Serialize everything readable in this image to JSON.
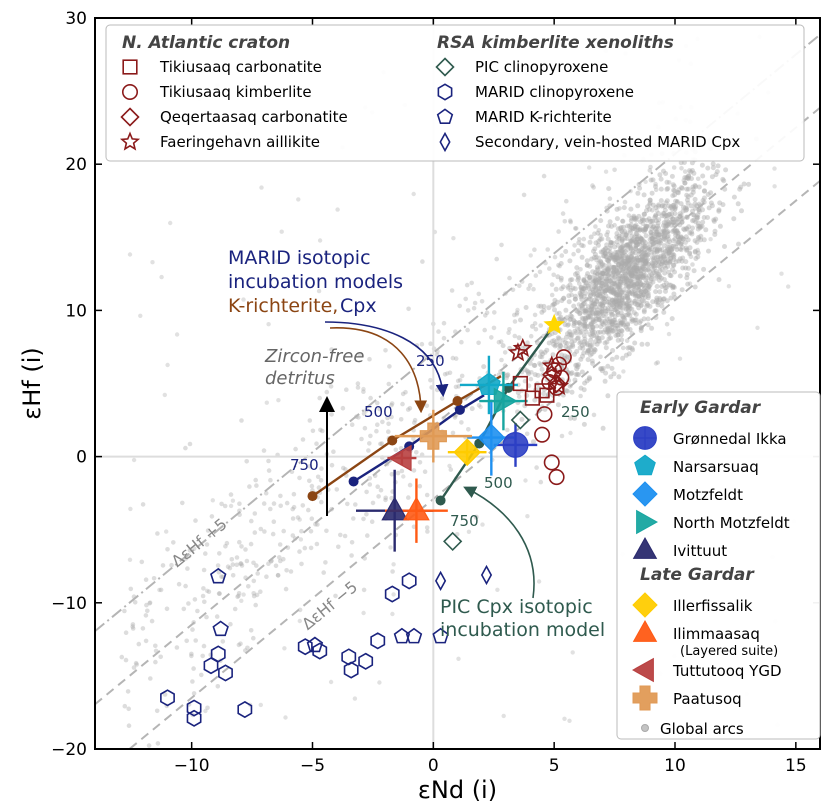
{
  "chart_data": {
    "type": "scatter",
    "xlabel": "εNd (i)",
    "ylabel": "εHf (i)",
    "xlim": [
      -14,
      16
    ],
    "ylim": [
      -20,
      30
    ],
    "x_ticks": [
      -10,
      -5,
      0,
      5,
      10,
      15
    ],
    "y_ticks": [
      -20,
      -10,
      0,
      10,
      20,
      30
    ],
    "x_tick_labels": [
      "−10",
      "−5",
      "0",
      "5",
      "10",
      "15"
    ],
    "y_tick_labels": [
      "−20",
      "−10",
      "0",
      "10",
      "20",
      "30"
    ],
    "grid": false,
    "reference_lines": [
      {
        "label": "ΔεHf +5",
        "slope": 1.36,
        "intercept": 7.1,
        "style": "dash-dot"
      },
      {
        "label": "",
        "slope": 1.36,
        "intercept": 2.1,
        "style": "dashed"
      },
      {
        "label": "ΔεHf −5",
        "slope": 1.36,
        "intercept": -2.9,
        "style": "dashed"
      }
    ],
    "upper_legend": {
      "placement": "top",
      "columns": [
        {
          "heading": "N. Atlantic craton",
          "entries": [
            {
              "label": "Tikiusaaq carbonatite",
              "marker": "square",
              "color": "#8b1a1a"
            },
            {
              "label": "Tikiusaaq kimberlite",
              "marker": "circle",
              "color": "#8b1a1a"
            },
            {
              "label": "Qeqertaasaq carbonatite",
              "marker": "diamond",
              "color": "#8b1a1a"
            },
            {
              "label": "Faeringehavn aillikite",
              "marker": "star",
              "color": "#8b1a1a"
            }
          ]
        },
        {
          "heading": "RSA kimberlite xenoliths",
          "entries": [
            {
              "label": "PIC clinopyroxene",
              "marker": "diamond",
              "color": "#2f5a4e"
            },
            {
              "label": "MARID clinopyroxene",
              "marker": "hexagon",
              "color": "#1a237e"
            },
            {
              "label": "MARID K-richterite",
              "marker": "pentagon",
              "color": "#1a237e"
            },
            {
              "label": "Secondary, vein-hosted MARID Cpx",
              "marker": "thin-diamond",
              "color": "#1a237e"
            }
          ]
        }
      ]
    },
    "side_legend": {
      "placement": "right",
      "groups": [
        {
          "heading": "Early Gardar",
          "entries": [
            {
              "label": "Grønnedal Ikka",
              "marker": "circle-plus",
              "color": "#2c3fc4"
            },
            {
              "label": "Narsarsuaq",
              "marker": "pentagon",
              "color": "#12a8c8"
            },
            {
              "label": "Motzfeldt",
              "marker": "diamond",
              "color": "#1e90f0"
            },
            {
              "label": "North Motzfeldt",
              "marker": "triangle-right",
              "color": "#17a5a0"
            },
            {
              "label": "Ivittuut",
              "marker": "triangle-up",
              "color": "#2a2a6e"
            }
          ]
        },
        {
          "heading": "Late Gardar",
          "entries": [
            {
              "label": "Illerfissalik",
              "marker": "diamond",
              "color": "#ffcc00"
            },
            {
              "label": "Ilimmaasaq",
              "sublabel": "(Layered suite)",
              "marker": "triangle-up",
              "color": "#ff5a14"
            },
            {
              "label": "Tuttutooq YGD",
              "marker": "triangle-left",
              "color": "#b84040"
            },
            {
              "label": "Paatusoq",
              "marker": "plus",
              "color": "#e09a55"
            }
          ]
        },
        {
          "heading": "",
          "entries": [
            {
              "label": "Global arcs",
              "marker": "dot",
              "color": "#aaaaaa"
            }
          ]
        }
      ]
    },
    "series": [
      {
        "name": "Tikiusaaq carbonatite",
        "marker": "square",
        "color": "#8b1a1a",
        "points": [
          [
            3.6,
            5.0
          ],
          [
            4.1,
            4.0
          ],
          [
            4.5,
            4.5
          ],
          [
            4.7,
            4.2
          ]
        ]
      },
      {
        "name": "Tikiusaaq kimberlite",
        "marker": "circle",
        "color": "#8b1a1a",
        "points": [
          [
            5.4,
            6.8
          ],
          [
            5.2,
            6.3
          ],
          [
            5.0,
            5.9
          ],
          [
            5.3,
            5.4
          ],
          [
            4.8,
            5.1
          ],
          [
            5.1,
            4.7
          ],
          [
            4.6,
            2.9
          ],
          [
            4.5,
            1.5
          ],
          [
            4.9,
            -0.4
          ],
          [
            5.1,
            -1.4
          ]
        ]
      },
      {
        "name": "Qeqertaasaq carbonatite",
        "marker": "diamond",
        "color": "#8b1a1a",
        "points": [
          [
            4.9,
            5.6
          ],
          [
            5.1,
            5.0
          ]
        ]
      },
      {
        "name": "Faeringehavn aillikite",
        "marker": "star",
        "color": "#8b1a1a",
        "points": [
          [
            3.7,
            7.4
          ],
          [
            3.5,
            7.1
          ],
          [
            4.9,
            6.2
          ],
          [
            5.2,
            4.8
          ]
        ]
      },
      {
        "name": "PIC clinopyroxene",
        "marker": "diamond",
        "color": "#2f5a4e",
        "points": [
          [
            3.6,
            2.5
          ],
          [
            0.8,
            -5.8
          ]
        ]
      },
      {
        "name": "MARID clinopyroxene",
        "marker": "hexagon",
        "color": "#1a237e",
        "points": [
          [
            -11.0,
            -16.5
          ],
          [
            -9.9,
            -17.2
          ],
          [
            -9.9,
            -17.9
          ],
          [
            -9.2,
            -14.3
          ],
          [
            -8.9,
            -13.5
          ],
          [
            -8.6,
            -14.8
          ],
          [
            -7.8,
            -17.3
          ],
          [
            -5.3,
            -13.0
          ],
          [
            -4.7,
            -13.3
          ],
          [
            -3.5,
            -13.7
          ],
          [
            -3.4,
            -14.6
          ],
          [
            -2.8,
            -14.0
          ],
          [
            -2.3,
            -12.6
          ],
          [
            -1.7,
            -9.4
          ],
          [
            -1.0,
            -8.5
          ]
        ]
      },
      {
        "name": "MARID K-richterite",
        "marker": "pentagon",
        "color": "#1a237e",
        "points": [
          [
            -8.9,
            -8.2
          ],
          [
            -8.8,
            -11.8
          ],
          [
            -4.9,
            -12.9
          ],
          [
            -1.3,
            -12.3
          ],
          [
            0.3,
            -12.3
          ],
          [
            -0.8,
            -12.3
          ]
        ]
      },
      {
        "name": "Secondary, vein-hosted MARID Cpx",
        "marker": "thin-diamond",
        "color": "#1a237e",
        "points": [
          [
            0.3,
            -8.5
          ],
          [
            2.2,
            -8.1
          ]
        ]
      },
      {
        "name": "Grønnedal Ikka",
        "marker": "circle-plus",
        "color": "#2c3fc4",
        "points": [
          [
            3.4,
            0.8
          ]
        ],
        "xerr": 0.9,
        "yerr": 1.5
      },
      {
        "name": "Narsarsuaq",
        "marker": "pentagon",
        "color": "#12a8c8",
        "points": [
          [
            2.3,
            4.9
          ]
        ],
        "xerr": 1.2,
        "yerr": 2.0
      },
      {
        "name": "Motzfeldt",
        "marker": "diamond",
        "color": "#1e90f0",
        "points": [
          [
            2.4,
            1.3
          ]
        ],
        "xerr": 1.0,
        "yerr": 2.6
      },
      {
        "name": "North Motzfeldt",
        "marker": "triangle-right",
        "color": "#17a5a0",
        "points": [
          [
            2.9,
            3.8
          ]
        ],
        "xerr": 1.0,
        "yerr": 2.0
      },
      {
        "name": "Ivittuut",
        "marker": "triangle-up",
        "color": "#2a2a6e",
        "points": [
          [
            -1.6,
            -3.7
          ]
        ],
        "xerr": 1.6,
        "yerr": 2.8
      },
      {
        "name": "Illerfissalik",
        "marker": "diamond",
        "color": "#ffcc00",
        "points": [
          [
            1.4,
            0.3
          ]
        ],
        "xerr": 0.8,
        "yerr": 0.8
      },
      {
        "name": "Ilimmaasaq",
        "marker": "triangle-up",
        "color": "#ff5a14",
        "points": [
          [
            -0.7,
            -3.7
          ]
        ],
        "xerr": 1.3,
        "yerr": 2.2
      },
      {
        "name": "Tuttutooq YGD",
        "marker": "triangle-left",
        "color": "#b84040",
        "points": [
          [
            -1.3,
            -0.1
          ]
        ],
        "xerr": 0.6,
        "yerr": 0.5
      },
      {
        "name": "Paatusoq",
        "marker": "plus",
        "color": "#e09a55",
        "points": [
          [
            0.0,
            1.4
          ]
        ],
        "xerr": 1.6,
        "yerr": 1.8
      }
    ],
    "incubation_models": [
      {
        "label": "MARID Cpx",
        "color": "#1a237e",
        "points": [
          [
            -3.3,
            -1.7
          ],
          [
            -1.0,
            0.7
          ],
          [
            1.1,
            3.2
          ],
          [
            2.1,
            4.2
          ]
        ],
        "age_labels": [
          {
            "text": "750",
            "at": [
              -3.3,
              -1.7
            ]
          },
          {
            "text": "500",
            "at": [
              -1.0,
              0.7
            ]
          },
          {
            "text": "250",
            "at": [
              1.1,
              3.2
            ]
          }
        ]
      },
      {
        "label": "MARID K-richterite",
        "color": "#8b4513",
        "points": [
          [
            -5.0,
            -2.7
          ],
          [
            -1.7,
            1.1
          ],
          [
            1.0,
            3.8
          ],
          [
            2.8,
            5.5
          ]
        ],
        "age_labels": []
      },
      {
        "label": "PIC Cpx",
        "color": "#2f5a4e",
        "points": [
          [
            0.3,
            -3.0
          ],
          [
            1.9,
            0.9
          ],
          [
            3.1,
            4.7
          ],
          [
            5.0,
            9.0
          ]
        ],
        "age_labels": [
          {
            "text": "750",
            "at": [
              0.3,
              -3.0
            ]
          },
          {
            "text": "500",
            "at": [
              1.9,
              0.9
            ]
          },
          {
            "text": "250",
            "at": [
              3.1,
              4.7
            ]
          }
        ]
      }
    ],
    "annotations": [
      {
        "text": "MARID isotopic",
        "color": "#1a237e"
      },
      {
        "text": "incubation models",
        "color": "#1a237e"
      },
      {
        "text": "K-richterite,",
        "color": "#8b4513"
      },
      {
        "text": "Cpx",
        "color": "#1a237e"
      },
      {
        "text": "Zircon-free",
        "color": "#666666"
      },
      {
        "text": "detritus",
        "color": "#666666"
      },
      {
        "text": "PIC Cpx isotopic",
        "color": "#2f5a4e"
      },
      {
        "text": "incubation model",
        "color": "#2f5a4e"
      },
      {
        "text": "250",
        "color": "#1a237e"
      },
      {
        "text": "500",
        "color": "#1a237e"
      },
      {
        "text": "750",
        "color": "#1a237e"
      },
      {
        "text": "250",
        "color": "#2f5a4e"
      },
      {
        "text": "500",
        "color": "#2f5a4e"
      },
      {
        "text": "750",
        "color": "#2f5a4e"
      }
    ],
    "global_arcs": {
      "name": "Global arcs",
      "color": "#aaaaaa",
      "description_points": "dense cloud of grey points along the mantle array"
    }
  }
}
